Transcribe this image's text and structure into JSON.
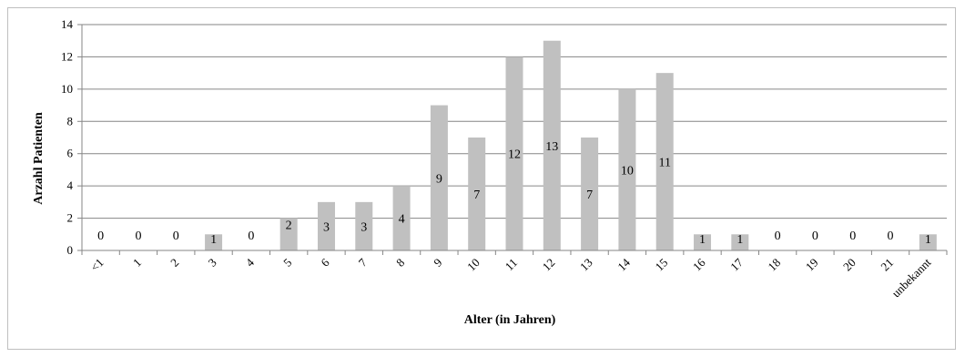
{
  "chart_data": {
    "type": "bar",
    "xlabel": "Alter (in Jahren)",
    "ylabel": "Arzahl Patienten",
    "ylim": [
      0,
      14
    ],
    "yticks": [
      "0",
      "2",
      "4",
      "6",
      "8",
      "10",
      "12",
      "14"
    ],
    "grid": true,
    "categories": [
      "<1",
      "1",
      "2",
      "3",
      "4",
      "5",
      "6",
      "7",
      "8",
      "9",
      "10",
      "11",
      "12",
      "13",
      "14",
      "15",
      "16",
      "17",
      "18",
      "19",
      "20",
      "21",
      "unbekannt"
    ],
    "values": [
      0,
      0,
      0,
      1,
      0,
      2,
      3,
      3,
      4,
      9,
      7,
      12,
      13,
      7,
      10,
      11,
      1,
      1,
      0,
      0,
      0,
      0,
      1
    ],
    "value_labels": [
      "0",
      "0",
      "0",
      "1",
      "0",
      "2",
      "3",
      "3",
      "4",
      "9",
      "7",
      "12",
      "13",
      "7",
      "10",
      "11",
      "1",
      "1",
      "0",
      "0",
      "0",
      "0",
      "1"
    ],
    "colors": {
      "bar": "#c0c0c0",
      "grid": "#868686",
      "axis": "#868686"
    }
  }
}
